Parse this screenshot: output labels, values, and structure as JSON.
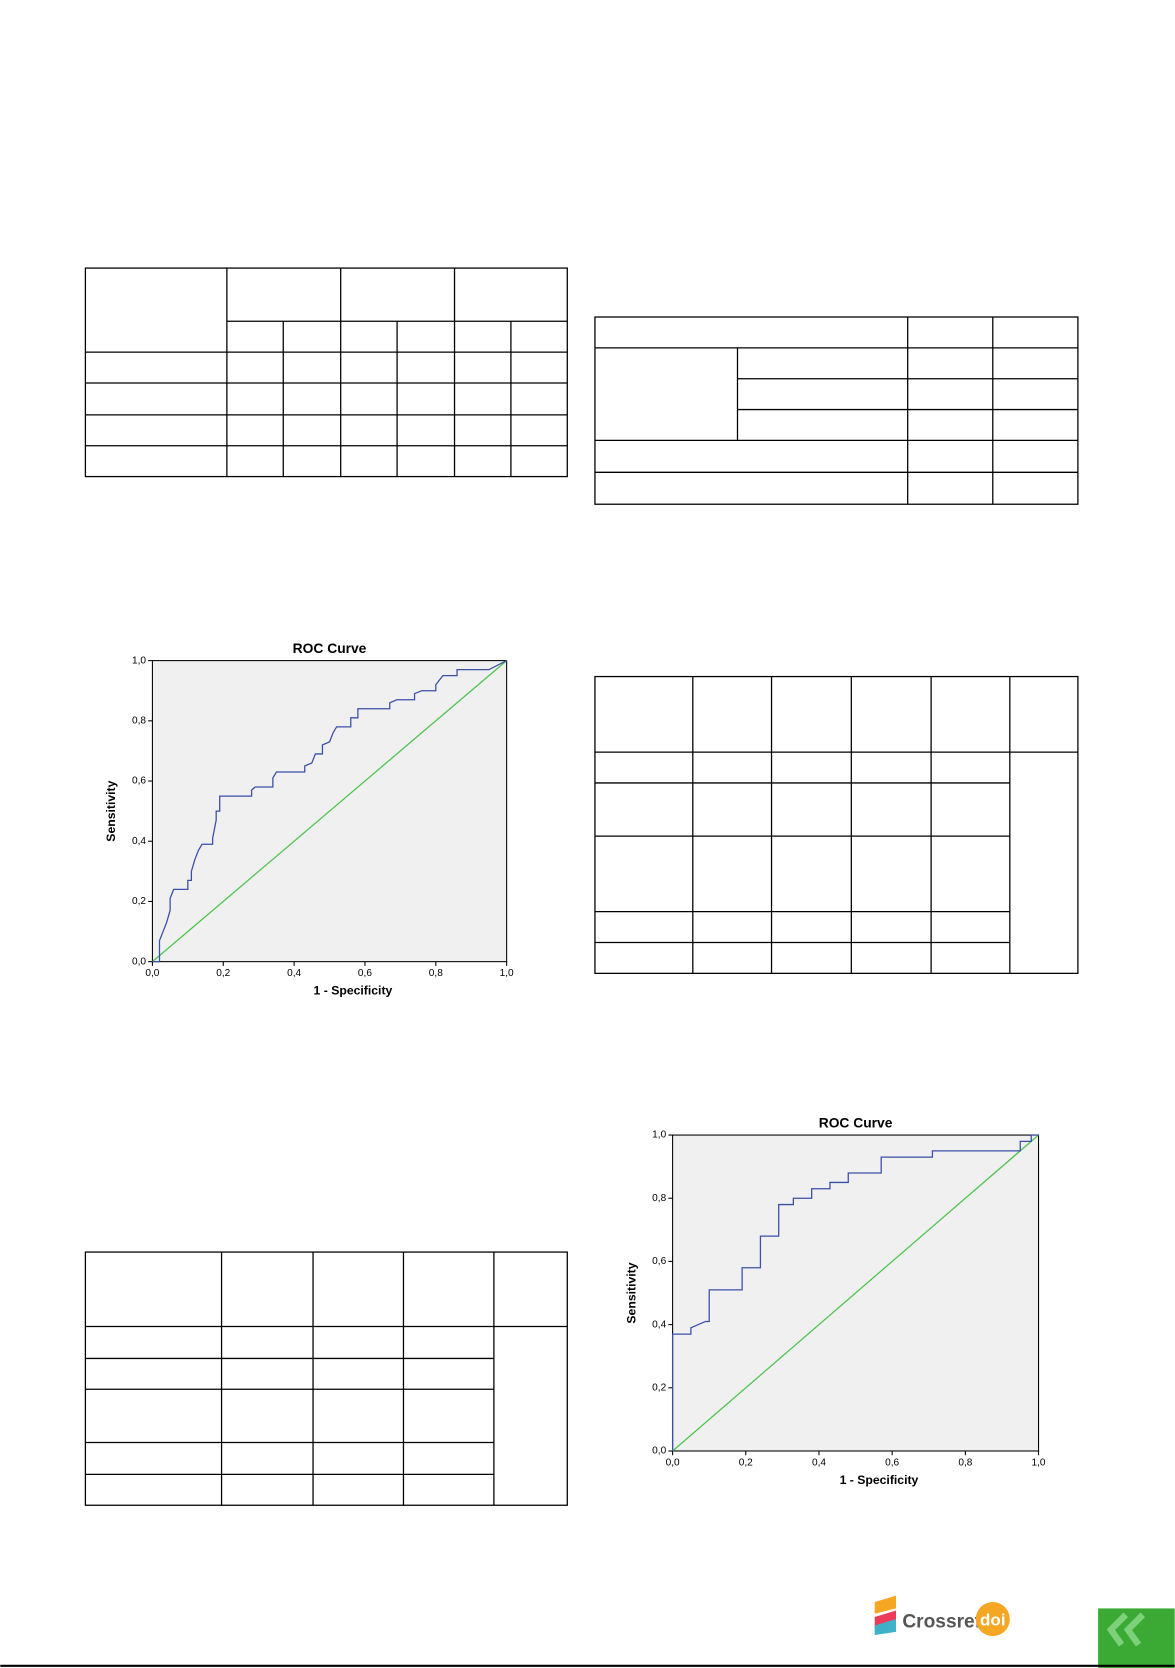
{
  "chart_data": [
    {
      "type": "line",
      "title": "ROC Curve",
      "xlabel": "1 - Specificity",
      "ylabel": "Sensitivity",
      "xlim": [
        0,
        1
      ],
      "ylim": [
        0,
        1
      ],
      "xticks": [
        {
          "value": 0,
          "label": "0,0"
        },
        {
          "value": 0.2,
          "label": "0,2"
        },
        {
          "value": 0.4,
          "label": "0,4"
        },
        {
          "value": 0.6,
          "label": "0,6"
        },
        {
          "value": 0.8,
          "label": "0,8"
        },
        {
          "value": 1,
          "label": "1,0"
        }
      ],
      "yticks": [
        {
          "value": 0,
          "label": "0,0"
        },
        {
          "value": 0.2,
          "label": "0,2"
        },
        {
          "value": 0.4,
          "label": "0,4"
        },
        {
          "value": 0.6,
          "label": "0,6"
        },
        {
          "value": 0.8,
          "label": "0,8"
        },
        {
          "value": 1,
          "label": "1,0"
        }
      ],
      "series": [
        {
          "color": "#3a4fa8",
          "x": [
            0,
            0.02,
            0.02,
            0.02,
            0.03,
            0.04,
            0.05,
            0.05,
            0.06,
            0.1,
            0.1,
            0.11,
            0.11,
            0.12,
            0.13,
            0.14,
            0.17,
            0.17,
            0.18,
            0.18,
            0.19,
            0.19,
            0.28,
            0.28,
            0.29,
            0.34,
            0.34,
            0.35,
            0.43,
            0.43,
            0.45,
            0.46,
            0.48,
            0.48,
            0.5,
            0.51,
            0.52,
            0.56,
            0.56,
            0.58,
            0.58,
            0.67,
            0.67,
            0.69,
            0.74,
            0.74,
            0.76,
            0.8,
            0.8,
            0.82,
            0.86,
            0.86,
            0.95,
            1
          ],
          "values": [
            0,
            0,
            0.03,
            0.07,
            0.1,
            0.13,
            0.17,
            0.21,
            0.24,
            0.24,
            0.27,
            0.27,
            0.3,
            0.34,
            0.37,
            0.39,
            0.39,
            0.41,
            0.47,
            0.5,
            0.5,
            0.55,
            0.55,
            0.57,
            0.58,
            0.58,
            0.61,
            0.63,
            0.63,
            0.65,
            0.66,
            0.69,
            0.69,
            0.72,
            0.73,
            0.76,
            0.78,
            0.78,
            0.81,
            0.81,
            0.84,
            0.84,
            0.86,
            0.87,
            0.87,
            0.89,
            0.9,
            0.9,
            0.92,
            0.95,
            0.95,
            0.97,
            0.97,
            1
          ]
        },
        {
          "color": "#4cc34c",
          "x": [
            0,
            1
          ],
          "values": [
            0,
            1
          ]
        }
      ]
    },
    {
      "type": "line",
      "title": "ROC Curve",
      "xlabel": "1 - Specificity",
      "ylabel": "Sensitivity",
      "xlim": [
        0,
        1
      ],
      "ylim": [
        0,
        1
      ],
      "xticks": [
        {
          "value": 0,
          "label": "0,0"
        },
        {
          "value": 0.2,
          "label": "0,2"
        },
        {
          "value": 0.4,
          "label": "0,4"
        },
        {
          "value": 0.6,
          "label": "0,6"
        },
        {
          "value": 0.8,
          "label": "0,8"
        },
        {
          "value": 1,
          "label": "1,0"
        }
      ],
      "yticks": [
        {
          "value": 0,
          "label": "0,0"
        },
        {
          "value": 0.2,
          "label": "0,2"
        },
        {
          "value": 0.4,
          "label": "0,4"
        },
        {
          "value": 0.6,
          "label": "0,6"
        },
        {
          "value": 0.8,
          "label": "0,8"
        },
        {
          "value": 1,
          "label": "1,0"
        }
      ],
      "series": [
        {
          "color": "#3a4fa8",
          "x": [
            0,
            0,
            0.05,
            0.05,
            0.09,
            0.1,
            0.1,
            0.19,
            0.19,
            0.24,
            0.24,
            0.29,
            0.29,
            0.33,
            0.33,
            0.38,
            0.38,
            0.43,
            0.43,
            0.48,
            0.48,
            0.57,
            0.57,
            0.71,
            0.71,
            0.95,
            0.95,
            0.98,
            0.98,
            1
          ],
          "values": [
            0,
            0.37,
            0.37,
            0.39,
            0.41,
            0.41,
            0.51,
            0.51,
            0.58,
            0.58,
            0.68,
            0.68,
            0.78,
            0.78,
            0.8,
            0.8,
            0.83,
            0.83,
            0.85,
            0.85,
            0.88,
            0.88,
            0.93,
            0.93,
            0.95,
            0.95,
            0.98,
            0.98,
            1,
            1
          ]
        },
        {
          "color": "#4cc34c",
          "x": [
            0,
            1
          ],
          "values": [
            0,
            1
          ]
        }
      ]
    }
  ],
  "logo": {
    "text": "Crossref",
    "doi": "doi"
  }
}
